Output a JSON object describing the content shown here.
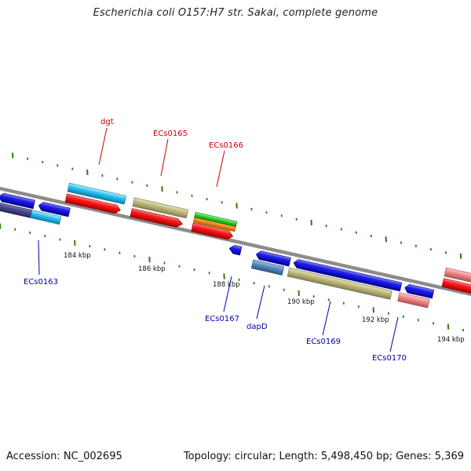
{
  "title": "Escherichia coli O157:H7 str. Sakai, complete genome",
  "footer": {
    "accession": "Accession: NC_002695",
    "summary": "Topology: circular; Length: 5,498,450 bp; Genes: 5,369"
  },
  "colors": {
    "backbone": "#8c8c8c",
    "tick": "#2e7d12",
    "label_top": "#cc0000",
    "label_bottom": "#0000aa"
  },
  "ruler": {
    "labels": [
      "184 kbp",
      "186 kbp",
      "188 kbp",
      "190 kbp",
      "192 kbp",
      "194 kbp"
    ]
  },
  "gene_labels_top": [
    "dgt",
    "ECs0165",
    "ECs0166"
  ],
  "gene_labels_bottom": [
    "ECs0163",
    "ECs0167",
    "dapD",
    "ECs0169",
    "ECs0170"
  ]
}
